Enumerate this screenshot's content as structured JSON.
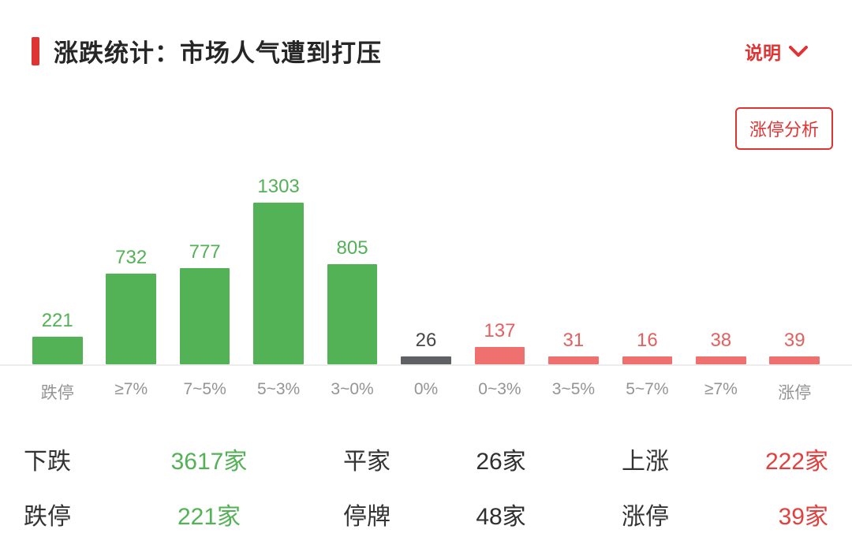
{
  "header": {
    "title": "涨跌统计：市场人气遭到打压",
    "help_label": "说明",
    "analysis_button": "涨停分析"
  },
  "chart_data": {
    "type": "bar",
    "title": "涨跌统计：市场人气遭到打压",
    "categories": [
      "跌停",
      "≥7%",
      "7~5%",
      "5~3%",
      "3~0%",
      "0%",
      "0~3%",
      "3~5%",
      "5~7%",
      "≥7%",
      "涨停"
    ],
    "values": [
      221,
      732,
      777,
      1303,
      805,
      26,
      137,
      31,
      16,
      38,
      39
    ],
    "colors": [
      "green",
      "green",
      "green",
      "green",
      "green",
      "gray",
      "red",
      "red",
      "red",
      "red",
      "red"
    ],
    "xlabel": "",
    "ylabel": "",
    "ylim": [
      0,
      1400
    ],
    "grid": false,
    "legend": "none",
    "value_labels": "above-bars"
  },
  "summary": {
    "rows": [
      [
        {
          "label": "下跌",
          "value": "3617家",
          "color": "green"
        },
        {
          "label": "平家",
          "value": "26家",
          "color": "dark"
        },
        {
          "label": "上涨",
          "value": "222家",
          "color": "red"
        }
      ],
      [
        {
          "label": "跌停",
          "value": "221家",
          "color": "green"
        },
        {
          "label": "停牌",
          "value": "48家",
          "color": "dark"
        },
        {
          "label": "涨停",
          "value": "39家",
          "color": "red"
        }
      ]
    ]
  },
  "palette": {
    "accent": "#df3434",
    "green": "#53b156",
    "red": "#ee7170",
    "red_value": "#e4605e",
    "red_text": "#e2403e",
    "gray": "#5f6063",
    "axis_label": "#949494",
    "baseline": "#ededed"
  }
}
